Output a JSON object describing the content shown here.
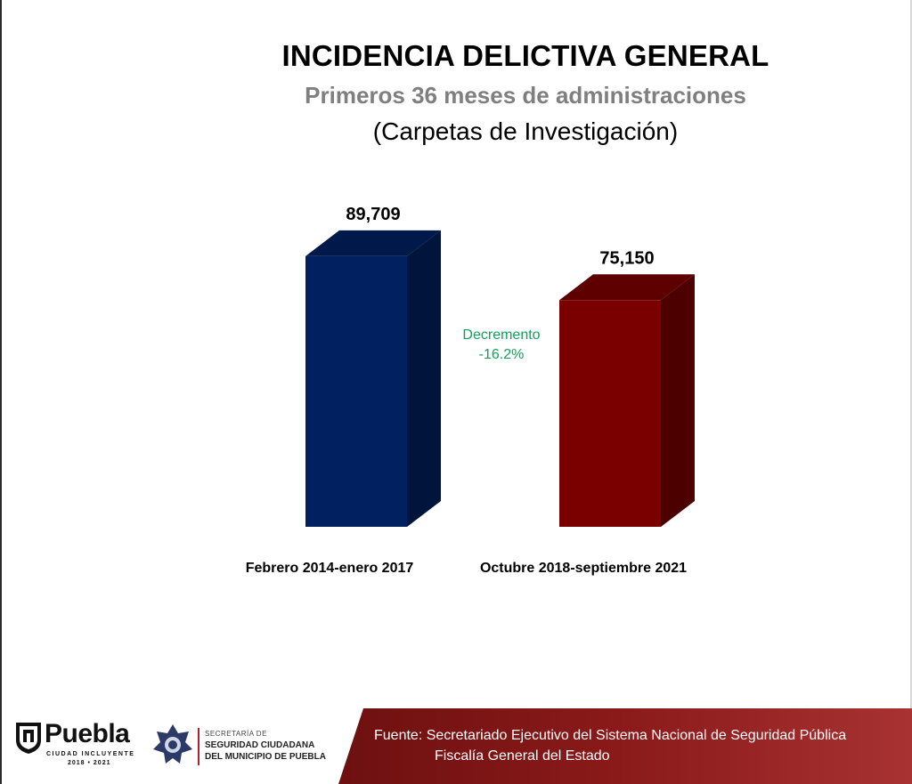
{
  "chart_data": {
    "type": "bar",
    "title": "INCIDENCIA DELICTIVA GENERAL",
    "subtitle": "Primeros 36 meses de administraciones",
    "subtitle2": "(Carpetas de Investigación)",
    "categories": [
      "Febrero 2014-enero 2017",
      "Octubre 2018-septiembre 2021"
    ],
    "values": [
      89709,
      75150
    ],
    "value_labels": [
      "89,709",
      "75,150"
    ],
    "colors": [
      "#002060",
      "#7a0000"
    ],
    "ylim": [
      0,
      95000
    ],
    "grid": false,
    "annotation": {
      "line1": "Decremento",
      "line2": "-16.2%",
      "color": "#12a15a"
    }
  },
  "footer": {
    "logo_word": "Puebla",
    "logo_sub": "CIUDAD INCLUYENTE",
    "logo_years": "2018 • 2021",
    "ssc_line1": "SECRETARÍA DE",
    "ssc_line2": "SEGURIDAD CIUDADANA",
    "ssc_line3": "DEL MUNICIPIO DE PUEBLA",
    "source_line1": "Fuente: Secretariado Ejecutivo del Sistema Nacional de Seguridad Pública",
    "source_line2": "Fiscalía General del Estado",
    "band_color": "#8b1a1a"
  }
}
